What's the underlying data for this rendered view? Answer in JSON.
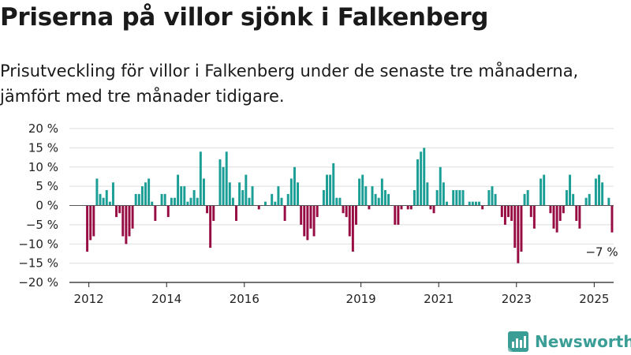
{
  "title": "Priserna på villor sjönk i Falkenberg",
  "subtitle": "Prisutveckling för villor i Falkenberg under de senaste tre månaderna, jämfört med tre månader tidigare.",
  "brand": "Newsworthy",
  "colors": {
    "positive": "#1a9e95",
    "negative": "#970c43",
    "grid": "#dddddd",
    "brand": "#3a9e96"
  },
  "chart_data": {
    "type": "bar",
    "title": "Priserna på villor sjönk i Falkenberg",
    "subtitle": "Prisutveckling för villor i Falkenberg under de senaste tre månaderna, jämfört med tre månader tidigare.",
    "ylim": [
      -20,
      20
    ],
    "yticks": [
      20,
      15,
      10,
      5,
      0,
      -5,
      -10,
      -15,
      -20
    ],
    "ytick_labels": [
      "20 %",
      "15 %",
      "10 %",
      "5 %",
      "0 %",
      "−5 %",
      "−10 %",
      "−15 %",
      "−20 %"
    ],
    "xlim": [
      2011.5,
      2025.5
    ],
    "xticks": [
      2012,
      2014,
      2016,
      2019,
      2021,
      2023,
      2025
    ],
    "xtick_labels": [
      "2012",
      "2014",
      "2016",
      "2019",
      "2021",
      "2023",
      "2025"
    ],
    "grid": true,
    "x_start": "2011-12",
    "interval": "month",
    "values": [
      -12,
      -9,
      -8,
      7,
      3,
      2,
      4,
      1,
      6,
      -3,
      -2,
      -8,
      -10,
      -8,
      -6,
      3,
      3,
      5,
      6,
      7,
      1,
      -4,
      0,
      3,
      3,
      -3,
      2,
      2,
      8,
      5,
      5,
      1,
      2,
      4,
      2,
      14,
      7,
      -2,
      -11,
      -4,
      0,
      12,
      10,
      14,
      6,
      2,
      -4,
      6,
      4,
      8,
      2,
      5,
      0,
      -1,
      0,
      1,
      0,
      3,
      1,
      5,
      2,
      -4,
      3,
      7,
      10,
      6,
      -5,
      -8,
      -9,
      -6,
      -8,
      -3,
      0,
      4,
      8,
      8,
      11,
      2,
      2,
      -2,
      -3,
      -8,
      -12,
      -5,
      7,
      8,
      5,
      -1,
      5,
      3,
      2,
      7,
      4,
      3,
      0,
      -5,
      -5,
      -1,
      0,
      -1,
      -1,
      4,
      12,
      14,
      15,
      6,
      -1,
      -2,
      4,
      10,
      6,
      1,
      0,
      4,
      4,
      4,
      4,
      0,
      1,
      1,
      1,
      1,
      -1,
      0,
      4,
      5,
      3,
      0,
      -3,
      -5,
      -3,
      -4,
      -11,
      -15,
      -12,
      3,
      4,
      -3,
      -6,
      0,
      7,
      8,
      0,
      -2,
      -6,
      -7,
      -4,
      -2,
      4,
      8,
      3,
      -4,
      -6,
      0,
      2,
      3,
      0,
      7,
      8,
      6,
      0,
      2,
      -7
    ],
    "annotation": {
      "label": "−7 %",
      "value": -7,
      "date": "2025-03"
    }
  }
}
